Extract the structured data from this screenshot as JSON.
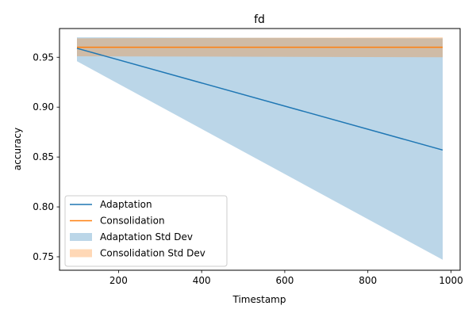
{
  "chart_data": {
    "type": "line",
    "title": "fd",
    "xlabel": "Timestamp",
    "ylabel": "accuracy",
    "xlim": [
      58,
      1022
    ],
    "ylim": [
      0.7365,
      0.9788
    ],
    "xticks": [
      200,
      400,
      600,
      800,
      1000
    ],
    "xtick_labels": [
      "200",
      "400",
      "600",
      "800",
      "1000"
    ],
    "yticks": [
      0.75,
      0.8,
      0.85,
      0.9,
      0.95
    ],
    "ytick_labels": [
      "0.75",
      "0.80",
      "0.85",
      "0.90",
      "0.95"
    ],
    "grid": false,
    "legend_position": "lower-left",
    "series": [
      {
        "name": "Adaptation",
        "color": "#1f77b4",
        "x": [
          100,
          980
        ],
        "y": [
          0.959,
          0.857
        ]
      },
      {
        "name": "Consolidation",
        "color": "#ff7f0e",
        "x": [
          100,
          980
        ],
        "y": [
          0.96,
          0.96
        ]
      }
    ],
    "bands": [
      {
        "name": "Adaptation Std Dev",
        "color": "#1f77b4",
        "opacity": 0.3,
        "x": [
          100,
          980
        ],
        "lower": [
          0.946,
          0.747
        ],
        "upper": [
          0.97,
          0.969
        ]
      },
      {
        "name": "Consolidation Std Dev",
        "color": "#ff7f0e",
        "opacity": 0.3,
        "x": [
          100,
          980
        ],
        "lower": [
          0.951,
          0.95
        ],
        "upper": [
          0.969,
          0.97
        ]
      }
    ],
    "legend": [
      {
        "label": "Adaptation",
        "kind": "line",
        "color": "#1f77b4"
      },
      {
        "label": "Consolidation",
        "kind": "line",
        "color": "#ff7f0e"
      },
      {
        "label": "Adaptation Std Dev",
        "kind": "patch",
        "color": "#1f77b4",
        "opacity": 0.3
      },
      {
        "label": "Consolidation Std Dev",
        "kind": "patch",
        "color": "#ff7f0e",
        "opacity": 0.3
      }
    ]
  }
}
